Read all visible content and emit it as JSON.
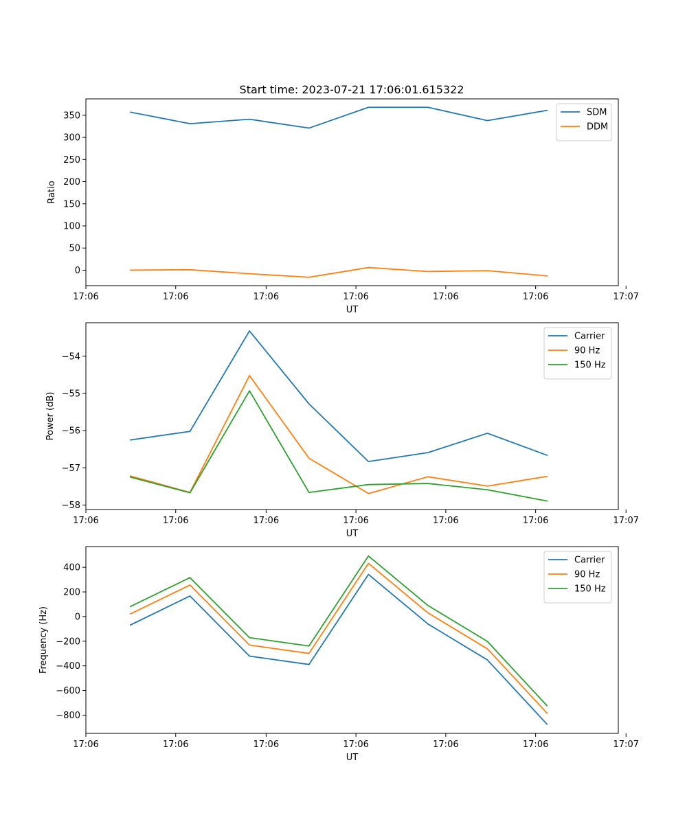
{
  "figure": {
    "title": "Start time: 2023-07-21 17:06:01.615322"
  },
  "colors": {
    "c0": "#1f77b4",
    "c1": "#ff7f0e",
    "c2": "#2ca02c"
  },
  "chart_data": [
    {
      "type": "line",
      "title": "Start time: 2023-07-21 17:06:01.615322",
      "xlabel": "UT",
      "ylabel": "Ratio",
      "x": [
        1,
        2,
        3,
        4,
        5,
        6,
        7,
        8
      ],
      "xlim": [
        0.25,
        9.2
      ],
      "xticks": [
        0.25,
        1.76,
        3.28,
        4.79,
        6.3,
        7.81,
        9.33
      ],
      "xtick_labels": [
        "17:06",
        "17:06",
        "17:06",
        "17:06",
        "17:06",
        "17:06",
        "17:07"
      ],
      "ylim": [
        -35,
        387
      ],
      "yticks": [
        0,
        50,
        100,
        150,
        200,
        250,
        300,
        350
      ],
      "ytick_labels": [
        "0",
        "50",
        "100",
        "150",
        "200",
        "250",
        "300",
        "350"
      ],
      "legend_position": "top-right",
      "series": [
        {
          "name": "SDM",
          "color": "#1f77b4",
          "values": [
            357,
            331,
            341,
            321,
            368,
            368,
            338,
            361
          ]
        },
        {
          "name": "DDM",
          "color": "#ff7f0e",
          "values": [
            0,
            1,
            -8,
            -16,
            6,
            -3,
            -1,
            -13
          ]
        }
      ]
    },
    {
      "type": "line",
      "title": "",
      "xlabel": "UT",
      "ylabel": "Power (dB)",
      "x": [
        1,
        2,
        3,
        4,
        5,
        6,
        7,
        8
      ],
      "xlim": [
        0.25,
        9.2
      ],
      "xticks": [
        0.25,
        1.76,
        3.28,
        4.79,
        6.3,
        7.81,
        9.33
      ],
      "xtick_labels": [
        "17:06",
        "17:06",
        "17:06",
        "17:06",
        "17:06",
        "17:06",
        "17:07"
      ],
      "ylim": [
        -58.12,
        -53.1
      ],
      "yticks": [
        -58,
        -57,
        -56,
        -55,
        -54
      ],
      "ytick_labels": [
        "−58",
        "−57",
        "−56",
        "−55",
        "−54"
      ],
      "legend_position": "top-right",
      "series": [
        {
          "name": "Carrier",
          "color": "#1f77b4",
          "values": [
            -56.25,
            -56.02,
            -53.32,
            -55.28,
            -56.83,
            -56.59,
            -56.07,
            -56.66
          ]
        },
        {
          "name": "90 Hz",
          "color": "#ff7f0e",
          "values": [
            -57.22,
            -57.66,
            -54.52,
            -56.74,
            -57.69,
            -57.24,
            -57.49,
            -57.23
          ]
        },
        {
          "name": "150 Hz",
          "color": "#2ca02c",
          "values": [
            -57.25,
            -57.67,
            -54.93,
            -57.66,
            -57.45,
            -57.42,
            -57.59,
            -57.89
          ]
        }
      ]
    },
    {
      "type": "line",
      "title": "",
      "xlabel": "UT",
      "ylabel": "Frequency (Hz)",
      "x": [
        1,
        2,
        3,
        4,
        5,
        6,
        7,
        8
      ],
      "xlim": [
        0.25,
        9.2
      ],
      "xticks": [
        0.25,
        1.76,
        3.28,
        4.79,
        6.3,
        7.81,
        9.33
      ],
      "xtick_labels": [
        "17:06",
        "17:06",
        "17:06",
        "17:06",
        "17:06",
        "17:06",
        "17:07"
      ],
      "ylim": [
        -948,
        568
      ],
      "yticks": [
        -800,
        -600,
        -400,
        -200,
        0,
        200,
        400
      ],
      "ytick_labels": [
        "−800",
        "−600",
        "−400",
        "−200",
        "0",
        "200",
        "400"
      ],
      "legend_position": "top-right",
      "series": [
        {
          "name": "Carrier",
          "color": "#1f77b4",
          "values": [
            -68,
            167,
            -321,
            -389,
            342,
            -60,
            -352,
            -873
          ]
        },
        {
          "name": "90 Hz",
          "color": "#ff7f0e",
          "values": [
            22,
            256,
            -231,
            -299,
            432,
            30,
            -262,
            -783
          ]
        },
        {
          "name": "150 Hz",
          "color": "#2ca02c",
          "values": [
            82,
            316,
            -171,
            -239,
            492,
            90,
            -202,
            -723
          ]
        }
      ]
    }
  ]
}
